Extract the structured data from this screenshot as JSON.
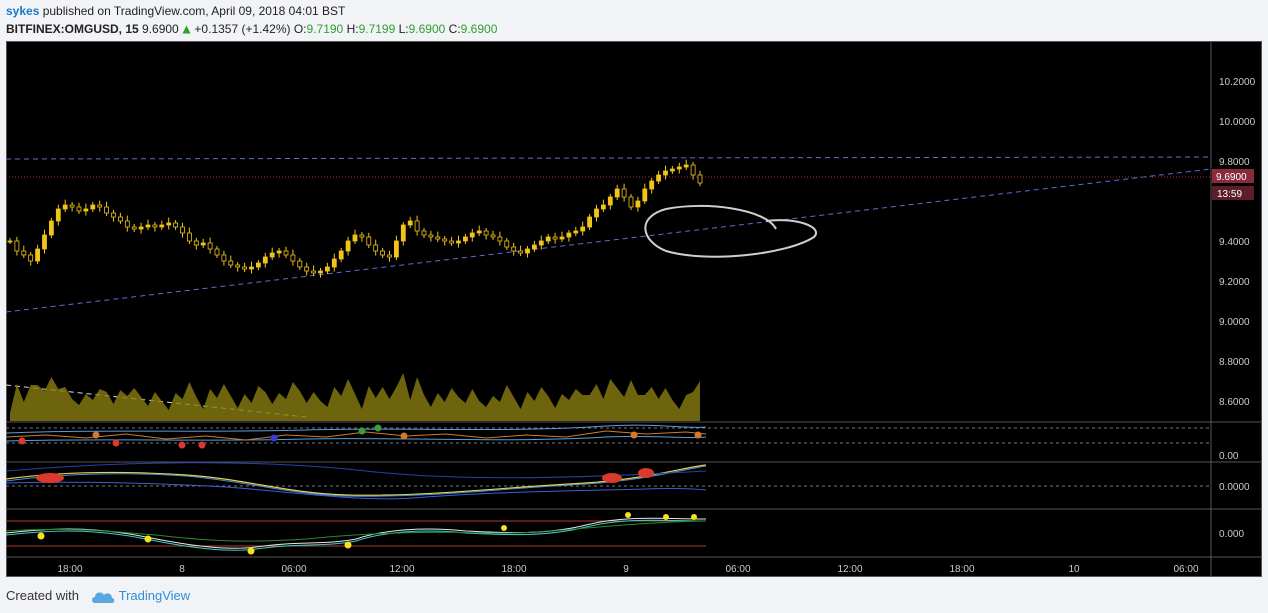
{
  "header": {
    "author": "sykes",
    "published_text": " published on TradingView.com, April 09, 2018 04:01 BST",
    "symbol": "BITFINEX:OMGUSD, 15",
    "price": "9.6900",
    "change": "+0.1357 (+1.42%)",
    "o_label": "O:",
    "o_value": "9.7190",
    "h_label": "H:",
    "h_value": "9.7199",
    "l_label": "L:",
    "l_value": "9.6900",
    "c_label": "C:",
    "c_value": "9.6900",
    "up_arrow_icon": "triangle-up-icon"
  },
  "footer": {
    "created_with": "Created with",
    "brand": "TradingView",
    "logo_icon": "cloud-icon"
  },
  "colors": {
    "background": "#000000",
    "candle": "#f0c419",
    "trendline": "#5b6fd6",
    "price_line": "#a03030",
    "price_tag": "#8b2a3a",
    "volume": "#8a7d12",
    "up": "#2da12d"
  },
  "chart_data": {
    "type": "candlestick",
    "symbol": "BITFINEX:OMGUSD",
    "interval": "15",
    "price_axis_ticks": [
      "10.2000",
      "10.0000",
      "9.8000",
      "9.4000",
      "9.2000",
      "9.0000",
      "8.8000",
      "8.6000"
    ],
    "price_axis_range": [
      8.5,
      10.4
    ],
    "last_price_tag": "9.6900",
    "countdown_tag": "13:59",
    "time_axis_labels": [
      "18:00",
      "8",
      "06:00",
      "12:00",
      "18:00",
      "9",
      "06:00",
      "12:00",
      "18:00",
      "10",
      "06:00"
    ],
    "close_series": [
      9.4,
      9.35,
      9.33,
      9.3,
      9.36,
      9.43,
      9.5,
      9.56,
      9.58,
      9.57,
      9.55,
      9.56,
      9.58,
      9.57,
      9.54,
      9.52,
      9.5,
      9.47,
      9.46,
      9.47,
      9.48,
      9.47,
      9.48,
      9.49,
      9.47,
      9.44,
      9.4,
      9.38,
      9.39,
      9.36,
      9.33,
      9.3,
      9.28,
      9.27,
      9.26,
      9.27,
      9.29,
      9.32,
      9.34,
      9.35,
      9.33,
      9.3,
      9.27,
      9.25,
      9.24,
      9.25,
      9.27,
      9.31,
      9.35,
      9.4,
      9.43,
      9.42,
      9.38,
      9.35,
      9.33,
      9.32,
      9.4,
      9.48,
      9.5,
      9.45,
      9.43,
      9.42,
      9.41,
      9.4,
      9.39,
      9.4,
      9.42,
      9.44,
      9.45,
      9.43,
      9.42,
      9.4,
      9.37,
      9.35,
      9.34,
      9.36,
      9.38,
      9.4,
      9.42,
      9.41,
      9.42,
      9.44,
      9.45,
      9.47,
      9.52,
      9.56,
      9.58,
      9.62,
      9.66,
      9.62,
      9.57,
      9.6,
      9.66,
      9.7,
      9.73,
      9.75,
      9.76,
      9.77,
      9.78,
      9.73,
      9.69
    ],
    "indicator_panes": [
      {
        "name": "oscillator-1",
        "axis_ticks": []
      },
      {
        "name": "oscillator-2",
        "axis_ticks": [
          "0.00",
          "0.0000"
        ]
      },
      {
        "name": "oscillator-3",
        "axis_ticks": [
          "0.000"
        ]
      }
    ]
  }
}
